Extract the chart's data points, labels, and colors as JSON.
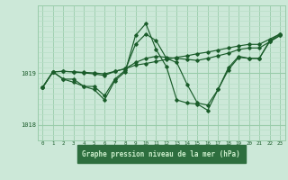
{
  "background_color": "#cce8d8",
  "plot_bg_color": "#cce8d8",
  "grid_color_major": "#99ccaa",
  "grid_color_minor": "#b8dfc8",
  "line_color": "#1a5c2a",
  "label_bg_color": "#2d6e3e",
  "label_text_color": "#cceecc",
  "title": "Graphe pression niveau de la mer (hPa)",
  "xlim": [
    -0.5,
    23.5
  ],
  "ylim": [
    1017.7,
    1020.3
  ],
  "yticks": [
    1018,
    1019
  ],
  "xticks": [
    0,
    1,
    2,
    3,
    4,
    5,
    6,
    7,
    8,
    9,
    10,
    11,
    12,
    13,
    14,
    15,
    16,
    17,
    18,
    19,
    20,
    21,
    22,
    23
  ],
  "series": [
    [
      1018.72,
      1019.02,
      1019.03,
      1019.02,
      1019.01,
      1019.0,
      1018.98,
      1019.03,
      1019.08,
      1019.15,
      1019.18,
      1019.22,
      1019.26,
      1019.3,
      1019.33,
      1019.37,
      1019.4,
      1019.44,
      1019.48,
      1019.52,
      1019.55,
      1019.55,
      1019.65,
      1019.75
    ],
    [
      1018.72,
      1019.02,
      1019.03,
      1019.02,
      1019.0,
      1018.98,
      1018.95,
      1019.03,
      1019.08,
      1019.2,
      1019.28,
      1019.32,
      1019.3,
      1019.28,
      1019.26,
      1019.24,
      1019.28,
      1019.33,
      1019.38,
      1019.45,
      1019.48,
      1019.48,
      1019.6,
      1019.72
    ],
    [
      1018.72,
      1019.02,
      1018.88,
      1018.88,
      1018.74,
      1018.74,
      1018.56,
      1018.88,
      1019.05,
      1019.55,
      1019.75,
      1019.62,
      1019.28,
      1019.2,
      1018.78,
      1018.42,
      1018.38,
      1018.68,
      1019.06,
      1019.3,
      1019.28,
      1019.28,
      1019.6,
      1019.72
    ],
    [
      1018.72,
      1019.02,
      1018.88,
      1018.82,
      1018.74,
      1018.68,
      1018.48,
      1018.85,
      1019.02,
      1019.72,
      1019.95,
      1019.45,
      1019.12,
      1018.48,
      1018.42,
      1018.4,
      1018.28,
      1018.68,
      1019.1,
      1019.32,
      1019.28,
      1019.28,
      1019.62,
      1019.75
    ]
  ]
}
